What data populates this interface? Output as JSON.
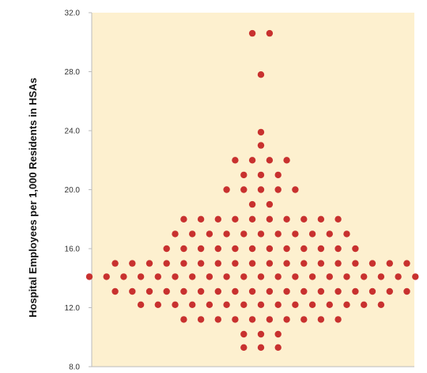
{
  "chart_data": {
    "type": "scatter",
    "subtype": "dot-plot-beeswarm",
    "title": "",
    "xlabel": "",
    "ylabel": "Hospital Employees per 1,000 Residents in HSAs",
    "ylim": [
      8.0,
      32.0
    ],
    "yticks": [
      "8.0",
      "12.0",
      "16.0",
      "20.0",
      "24.0",
      "28.0",
      "32.0"
    ],
    "grid": false,
    "colors": {
      "plot_background": "#fdf0cf",
      "dot": "#c8312f",
      "axis": "#bbbbbb"
    },
    "series": [
      {
        "values": [
          30.6,
          30.6,
          27.8,
          23.9,
          23.0,
          22.0,
          22.0,
          22.0,
          22.0,
          21.0,
          21.0,
          21.0,
          20.0,
          20.0,
          20.0,
          20.0,
          20.0,
          19.0,
          19.0,
          18.0,
          18.0,
          18.0,
          18.0,
          18.0,
          18.0,
          18.0,
          18.0,
          18.0,
          18.0,
          17.0,
          17.0,
          17.0,
          17.0,
          17.0,
          17.0,
          17.0,
          17.0,
          17.0,
          17.0,
          17.0,
          16.0,
          16.0,
          16.0,
          16.0,
          16.0,
          16.0,
          16.0,
          16.0,
          16.0,
          16.0,
          16.0,
          16.0,
          15.0,
          15.0,
          15.0,
          15.0,
          15.0,
          15.0,
          15.0,
          15.0,
          15.0,
          15.0,
          15.0,
          15.0,
          15.0,
          15.0,
          15.0,
          15.0,
          15.0,
          15.0,
          14.1,
          14.1,
          14.1,
          14.1,
          14.1,
          14.1,
          14.1,
          14.1,
          14.1,
          14.1,
          14.1,
          14.1,
          14.1,
          14.1,
          14.1,
          14.1,
          14.1,
          14.1,
          14.1,
          14.1,
          14.1,
          13.1,
          13.1,
          13.1,
          13.1,
          13.1,
          13.1,
          13.1,
          13.1,
          13.1,
          13.1,
          13.1,
          13.1,
          13.1,
          13.1,
          13.1,
          13.1,
          13.1,
          13.1,
          12.2,
          12.2,
          12.2,
          12.2,
          12.2,
          12.2,
          12.2,
          12.2,
          12.2,
          12.2,
          12.2,
          12.2,
          12.2,
          12.2,
          12.2,
          11.2,
          11.2,
          11.2,
          11.2,
          11.2,
          11.2,
          11.2,
          11.2,
          11.2,
          11.2,
          10.2,
          10.2,
          10.2,
          9.3,
          9.3,
          9.3
        ]
      }
    ]
  }
}
